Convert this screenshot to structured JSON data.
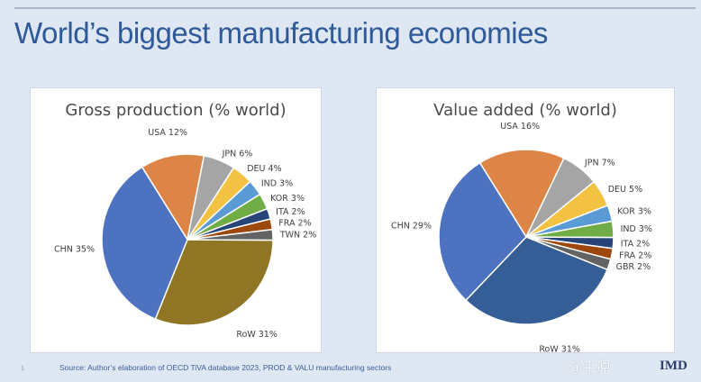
{
  "slide_title": "World’s biggest manufacturing economies",
  "source": "Source: Author’s elaboration of OECD   TiVA database 2023, PROD & VALU manufacturing sectors",
  "page_number": "1",
  "watermark": "@平原",
  "logo_text": "IMD",
  "chart_data": [
    {
      "type": "pie",
      "title": "Gross production (% world)",
      "start": "top, clockwise",
      "slices": [
        {
          "label": "USA 12%",
          "name": "USA",
          "value": 12,
          "color": "#dd8447"
        },
        {
          "label": "JPN 6%",
          "name": "JPN",
          "value": 6,
          "color": "#a5a5a5"
        },
        {
          "label": "DEU 4%",
          "name": "DEU",
          "value": 4,
          "color": "#f4c242"
        },
        {
          "label": "IND 3%",
          "name": "IND",
          "value": 3,
          "color": "#5b9bd5"
        },
        {
          "label": "KOR 3%",
          "name": "KOR",
          "value": 3,
          "color": "#70ad47"
        },
        {
          "label": "ITA 2%",
          "name": "ITA",
          "value": 2,
          "color": "#264478"
        },
        {
          "label": "FRA 2%",
          "name": "FRA",
          "value": 2,
          "color": "#9e480e"
        },
        {
          "label": "TWN 2%",
          "name": "TWN",
          "value": 2,
          "color": "#636363"
        },
        {
          "label": "RoW 31%",
          "name": "RoW",
          "value": 31,
          "color": "#8f7524"
        },
        {
          "label": "CHN 35%",
          "name": "CHN",
          "value": 35,
          "color": "#4c72c0"
        }
      ]
    },
    {
      "type": "pie",
      "title": "Value added (% world)",
      "start": "top, clockwise",
      "slices": [
        {
          "label": "USA 16%",
          "name": "USA",
          "value": 16,
          "color": "#dd8447"
        },
        {
          "label": "JPN 7%",
          "name": "JPN",
          "value": 7,
          "color": "#a5a5a5"
        },
        {
          "label": "DEU 5%",
          "name": "DEU",
          "value": 5,
          "color": "#f4c242"
        },
        {
          "label": "KOR 3%",
          "name": "KOR",
          "value": 3,
          "color": "#5b9bd5"
        },
        {
          "label": "IND 3%",
          "name": "IND",
          "value": 3,
          "color": "#70ad47"
        },
        {
          "label": "ITA 2%",
          "name": "ITA",
          "value": 2,
          "color": "#264478"
        },
        {
          "label": "FRA 2%",
          "name": "FRA",
          "value": 2,
          "color": "#9e480e"
        },
        {
          "label": "GBR 2%",
          "name": "GBR",
          "value": 2,
          "color": "#636363"
        },
        {
          "label": "RoW 31%",
          "name": "RoW",
          "value": 31,
          "color": "#355d96"
        },
        {
          "label": "CHN 29%",
          "name": "CHN",
          "value": 29,
          "color": "#4c72c0"
        }
      ]
    }
  ]
}
